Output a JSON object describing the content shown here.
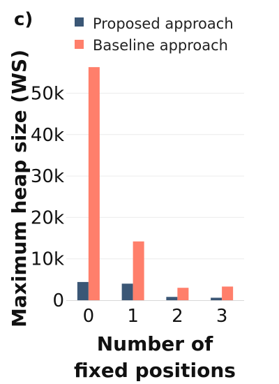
{
  "panel_label": "c)",
  "colors": {
    "proposed": "#3b5776",
    "baseline": "#ff7f6b",
    "grid": "#ececec",
    "axis": "#d8d8d8"
  },
  "chart_data": {
    "type": "bar",
    "categories": [
      "0",
      "1",
      "2",
      "3"
    ],
    "series": [
      {
        "name": "Proposed approach",
        "values": [
          4400,
          4000,
          800,
          600
        ]
      },
      {
        "name": "Baseline approach",
        "values": [
          56300,
          14200,
          3000,
          3300
        ]
      }
    ],
    "xlabel": [
      "Number of",
      "fixed positions"
    ],
    "ylabel": "Maximum heap size (WS)",
    "ylim": [
      0,
      57000
    ],
    "yticks": [
      0,
      10000,
      20000,
      30000,
      40000,
      50000
    ],
    "yticklabels": [
      "0",
      "10k",
      "20k",
      "30k",
      "40k",
      "50k"
    ],
    "grid": true,
    "legend": "top"
  }
}
